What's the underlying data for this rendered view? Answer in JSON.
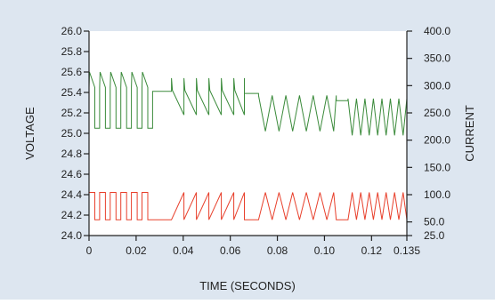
{
  "chart_data": {
    "type": "line",
    "title": "",
    "xlabel": "TIME (SECONDS)",
    "ylabel": "VOLTAGE",
    "y2label": "CURRENT",
    "xlim": [
      0,
      0.135
    ],
    "ylim": [
      24.0,
      26.0
    ],
    "y2lim": [
      25.0,
      400.0
    ],
    "x_ticks": [
      "0",
      "0.02",
      "0.04",
      "0.06",
      "0.08",
      "0.10",
      "0.12",
      "0.135"
    ],
    "x_tick_values": [
      0,
      0.02,
      0.04,
      0.06,
      0.08,
      0.1,
      0.12,
      0.135
    ],
    "y_ticks": [
      "26.0",
      "25.8",
      "25.6",
      "25.4",
      "25.2",
      "25.0",
      "24.8",
      "24.6",
      "24.4",
      "24.2",
      "24.0"
    ],
    "y_tick_values": [
      26.0,
      25.8,
      25.6,
      25.4,
      25.2,
      25.0,
      24.8,
      24.6,
      24.4,
      24.2,
      24.0
    ],
    "y2_ticks": [
      "400.0",
      "350.0",
      "300.0",
      "250.0",
      "200.0",
      "150.0",
      "100.0",
      "50.0",
      "25.0"
    ],
    "y2_tick_values": [
      400,
      350,
      300,
      250,
      200,
      150,
      100,
      50,
      25
    ],
    "grid": false,
    "legend": "none",
    "colors": {
      "voltage": "#3a8a3a",
      "current": "#e8402c",
      "background": "#dde6f0"
    },
    "segments": [
      {
        "phase": "square-pulse",
        "x_start": 0.0,
        "x_end": 0.027,
        "period": 0.0045,
        "voltage_high": 25.45,
        "voltage_low": 25.05,
        "current_high": 104,
        "current_low": 54
      },
      {
        "phase": "sawtooth",
        "x_start": 0.027,
        "x_end": 0.035,
        "voltage": 25.41,
        "current": 54
      },
      {
        "phase": "sawtooth",
        "x_start": 0.035,
        "x_end": 0.066,
        "period": 0.0053,
        "voltage_high": 25.42,
        "voltage_low": 25.18,
        "current_high": 104,
        "current_low": 54
      },
      {
        "phase": "transition",
        "x_start": 0.066,
        "x_end": 0.072,
        "voltage": 25.39,
        "current": 54
      },
      {
        "phase": "triangle",
        "x_start": 0.072,
        "x_end": 0.105,
        "period": 0.0058,
        "voltage_high": 25.37,
        "voltage_low": 25.02,
        "current_high": 104,
        "current_low": 54
      },
      {
        "phase": "pause",
        "x_start": 0.105,
        "x_end": 0.11,
        "voltage": 25.32,
        "current": 54
      },
      {
        "phase": "triangle",
        "x_start": 0.11,
        "x_end": 0.135,
        "period": 0.0036,
        "voltage_high": 25.34,
        "voltage_low": 24.98,
        "current_high": 104,
        "current_low": 54
      }
    ]
  }
}
